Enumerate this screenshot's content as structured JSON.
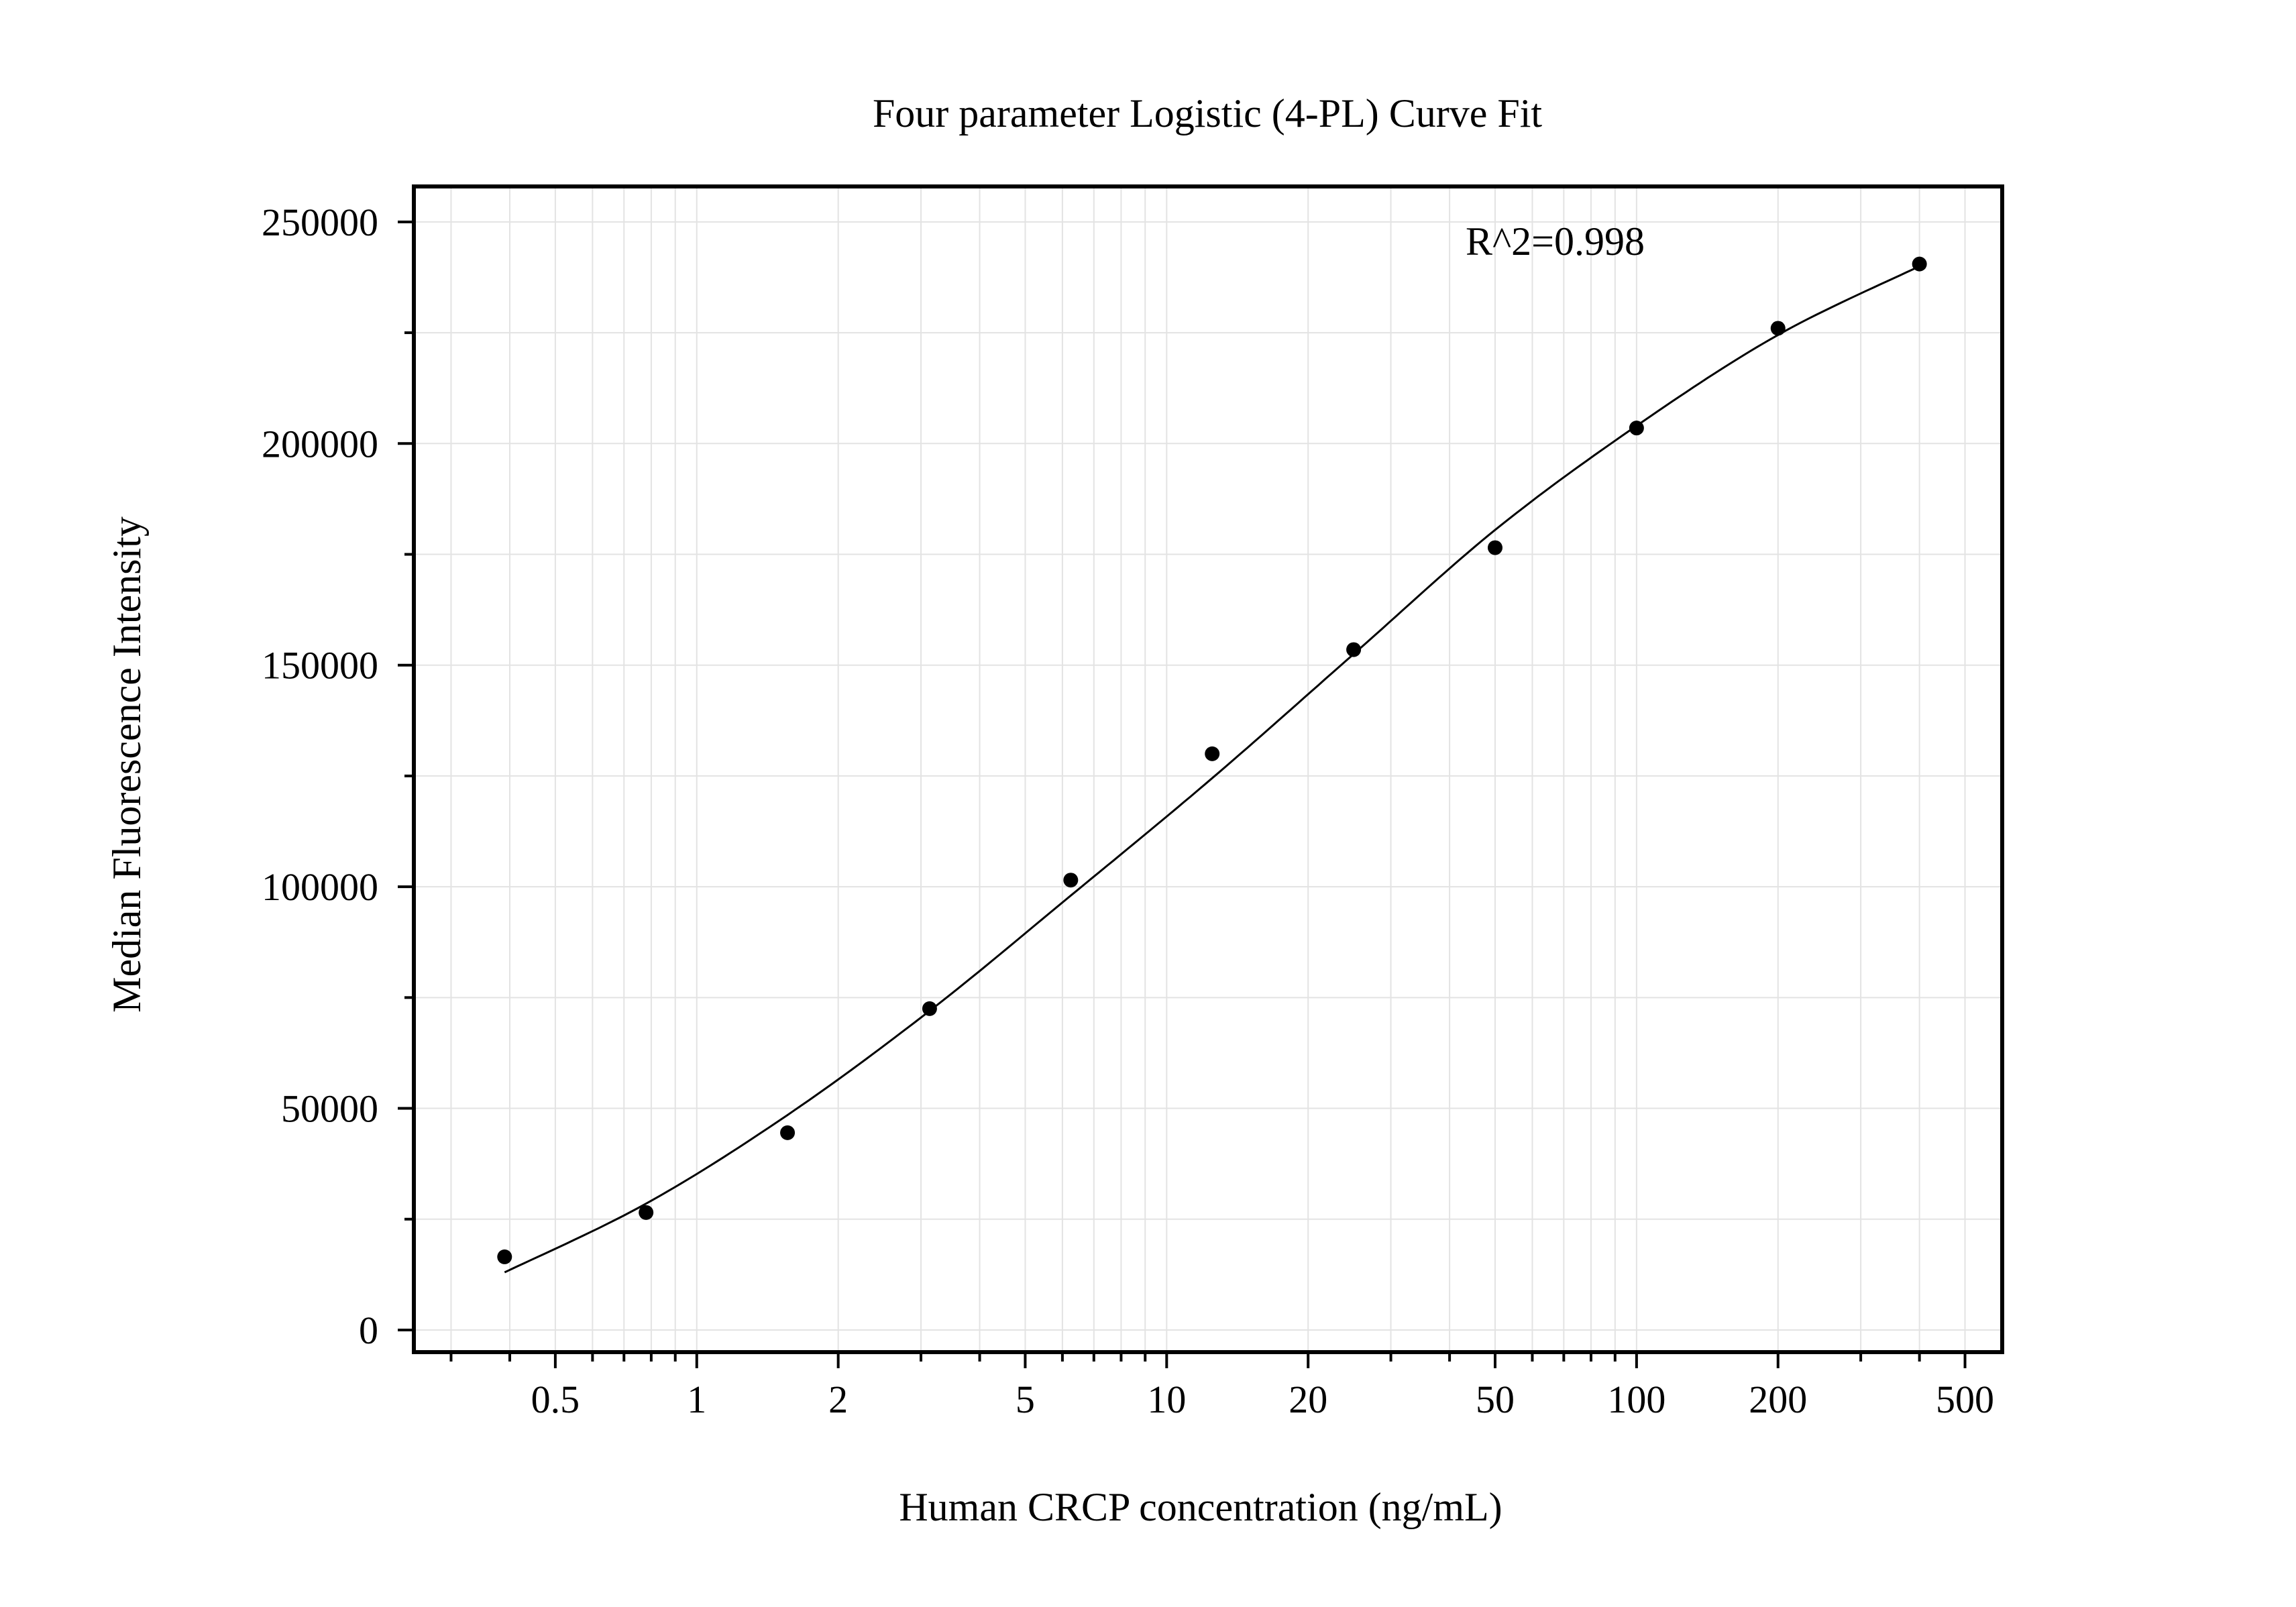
{
  "chart_data": {
    "type": "scatter",
    "title": "Four parameter Logistic (4-PL) Curve Fit",
    "xlabel": "Human CRCP concentration (ng/mL)",
    "ylabel": "Median Fluorescence Intensity",
    "x_scale": "log",
    "xlim": [
      0.25,
      600
    ],
    "ylim": [
      -5000,
      258000
    ],
    "x_ticks": [
      {
        "value": 0.5,
        "label": "0.5"
      },
      {
        "value": 1,
        "label": "1"
      },
      {
        "value": 2,
        "label": "2"
      },
      {
        "value": 5,
        "label": "5"
      },
      {
        "value": 10,
        "label": "10"
      },
      {
        "value": 20,
        "label": "20"
      },
      {
        "value": 50,
        "label": "50"
      },
      {
        "value": 100,
        "label": "100"
      },
      {
        "value": 200,
        "label": "200"
      },
      {
        "value": 500,
        "label": "500"
      }
    ],
    "y_ticks": [
      {
        "value": 0,
        "label": "0"
      },
      {
        "value": 50000,
        "label": "50000"
      },
      {
        "value": 100000,
        "label": "100000"
      },
      {
        "value": 150000,
        "label": "150000"
      },
      {
        "value": 200000,
        "label": "200000"
      },
      {
        "value": 250000,
        "label": "250000"
      }
    ],
    "grid": true,
    "annotation": "R^2=0.998",
    "series": [
      {
        "marker": "circle",
        "color": "#000000",
        "points": [
          {
            "x": 0.39,
            "y": 16500
          },
          {
            "x": 0.78,
            "y": 26500
          },
          {
            "x": 1.56,
            "y": 44500
          },
          {
            "x": 3.13,
            "y": 72500
          },
          {
            "x": 6.25,
            "y": 101500
          },
          {
            "x": 12.5,
            "y": 130000
          },
          {
            "x": 25,
            "y": 153500
          },
          {
            "x": 50,
            "y": 176500
          },
          {
            "x": 100,
            "y": 203500
          },
          {
            "x": 200,
            "y": 226000
          },
          {
            "x": 400,
            "y": 240500
          }
        ]
      }
    ],
    "fit_curve": {
      "model": "4PL",
      "color": "#000000",
      "x_range": [
        0.39,
        400
      ],
      "points": [
        {
          "x": 0.39,
          "y": 13000
        },
        {
          "x": 0.78,
          "y": 28500
        },
        {
          "x": 1.56,
          "y": 48500
        },
        {
          "x": 3.13,
          "y": 72000
        },
        {
          "x": 6.25,
          "y": 98000
        },
        {
          "x": 12.5,
          "y": 124500
        },
        {
          "x": 25,
          "y": 152500
        },
        {
          "x": 50,
          "y": 180500
        },
        {
          "x": 100,
          "y": 204000
        },
        {
          "x": 200,
          "y": 224500
        },
        {
          "x": 400,
          "y": 240000
        }
      ]
    }
  }
}
